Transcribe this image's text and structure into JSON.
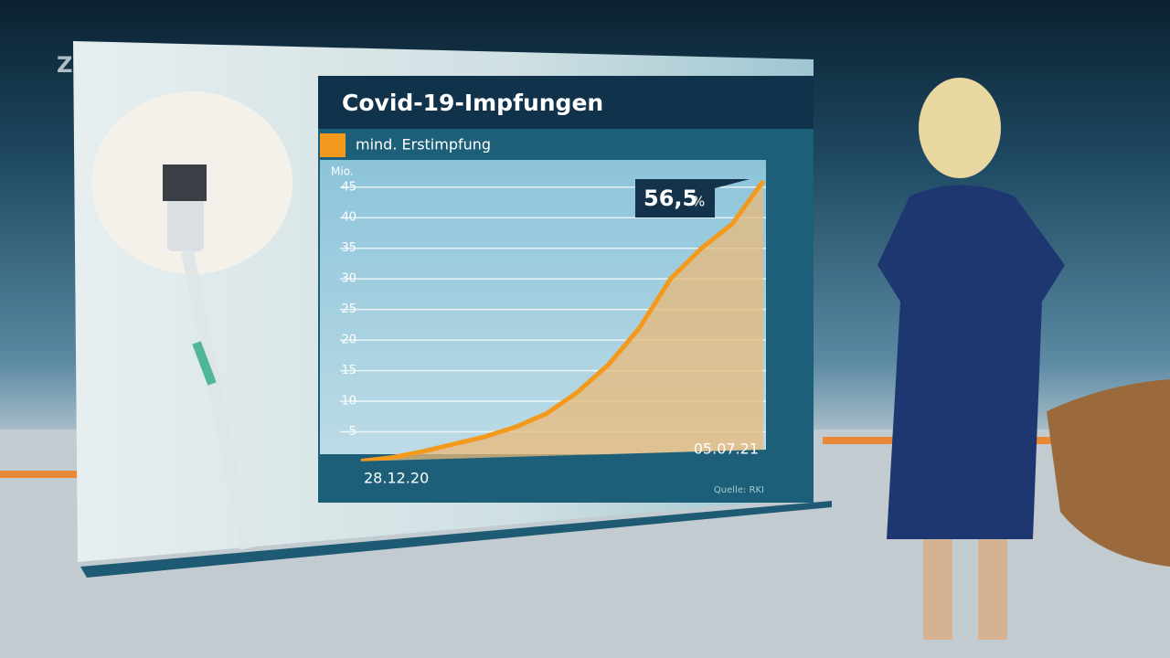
{
  "chart_data": {
    "type": "line",
    "logo": "ZDF",
    "logo_suffix": "HD",
    "title": "Covid-19-Impfungen",
    "y_label": "Mio.",
    "source": "Quelle: RKI",
    "annotation": {
      "text": "56,5",
      "unit": "%"
    },
    "categories": [
      "28.12.20",
      null,
      null,
      null,
      null,
      null,
      null,
      null,
      null,
      null,
      null,
      null,
      null,
      "05.07.21"
    ],
    "series": [
      {
        "name": "mind. Erstimpfung",
        "color": "#f39a1e",
        "values": [
          0.2,
          0.8,
          1.8,
          3.0,
          4.2,
          5.8,
          8.0,
          11.5,
          16.0,
          22.0,
          30.0,
          35.0,
          39.0,
          46.0
        ]
      }
    ],
    "ylim": [
      0,
      49
    ],
    "yticks": [
      5,
      10,
      15,
      20,
      25,
      30,
      35,
      40,
      45
    ],
    "grid": true
  }
}
